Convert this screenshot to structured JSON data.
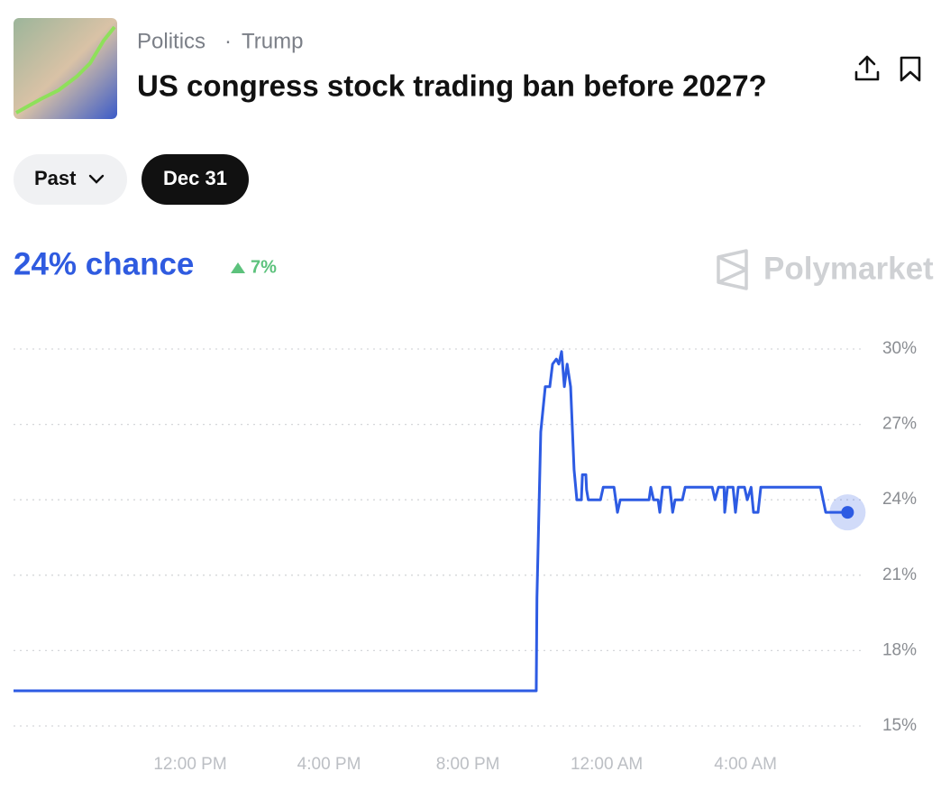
{
  "header": {
    "category": "Politics",
    "separator": "·",
    "tag": "Trump",
    "title": "US congress stock trading ban before 2027?"
  },
  "filters": {
    "range": "Past",
    "date": "Dec 31"
  },
  "summary": {
    "chance": "24% chance",
    "change": "7%"
  },
  "brand": "Polymarket",
  "chart_data": {
    "type": "line",
    "x": [
      6.91,
      21.97,
      21.99,
      22.1,
      22.23,
      22.36,
      22.44,
      22.55,
      22.62,
      22.7,
      22.78,
      22.86,
      22.96,
      23.06,
      23.14,
      23.27,
      23.3,
      23.4,
      23.42,
      23.47,
      23.82,
      23.9,
      24.21,
      24.31,
      24.39,
      25.22,
      25.27,
      25.35,
      25.48,
      25.53,
      25.61,
      25.82,
      25.9,
      25.97,
      26.18,
      26.26,
      27.04,
      27.12,
      27.22,
      27.38,
      27.4,
      27.48,
      27.64,
      27.71,
      27.79,
      27.97,
      28.05,
      28.16,
      28.23,
      28.36,
      28.44,
      30.16,
      30.31,
      30.94
    ],
    "series": [
      {
        "color": "#2d5be3",
        "values": [
          16.4,
          16.4,
          20.1,
          26.7,
          28.5,
          28.5,
          29.4,
          29.6,
          29.4,
          29.9,
          28.5,
          29.4,
          28.5,
          25.2,
          24,
          24,
          25,
          25,
          24.4,
          24,
          24,
          24.5,
          24.5,
          23.5,
          24,
          24,
          24.5,
          24,
          24,
          23.5,
          24.5,
          24.5,
          23.5,
          24,
          24,
          24.5,
          24.5,
          24,
          24.5,
          24.5,
          23.5,
          24.5,
          24.5,
          23.5,
          24.5,
          24.5,
          24,
          24.5,
          23.5,
          23.5,
          24.5,
          24.5,
          23.5,
          23.5
        ]
      }
    ],
    "xlim": [
      6.91,
      31.45
    ],
    "ylim": [
      15,
      30
    ],
    "xticks": [
      {
        "value": 12,
        "label": "12:00 PM"
      },
      {
        "value": 16,
        "label": "4:00 PM"
      },
      {
        "value": 20,
        "label": "8:00 PM"
      },
      {
        "value": 24,
        "label": "12:00 AM"
      },
      {
        "value": 28,
        "label": "4:00 AM"
      }
    ],
    "yticks": [
      {
        "value": 15,
        "label": "15%"
      },
      {
        "value": 18,
        "label": "18%"
      },
      {
        "value": 21,
        "label": "21%"
      },
      {
        "value": 24,
        "label": "24%"
      },
      {
        "value": 27,
        "label": "27%"
      },
      {
        "value": 30,
        "label": "30%"
      }
    ],
    "grid": true
  }
}
